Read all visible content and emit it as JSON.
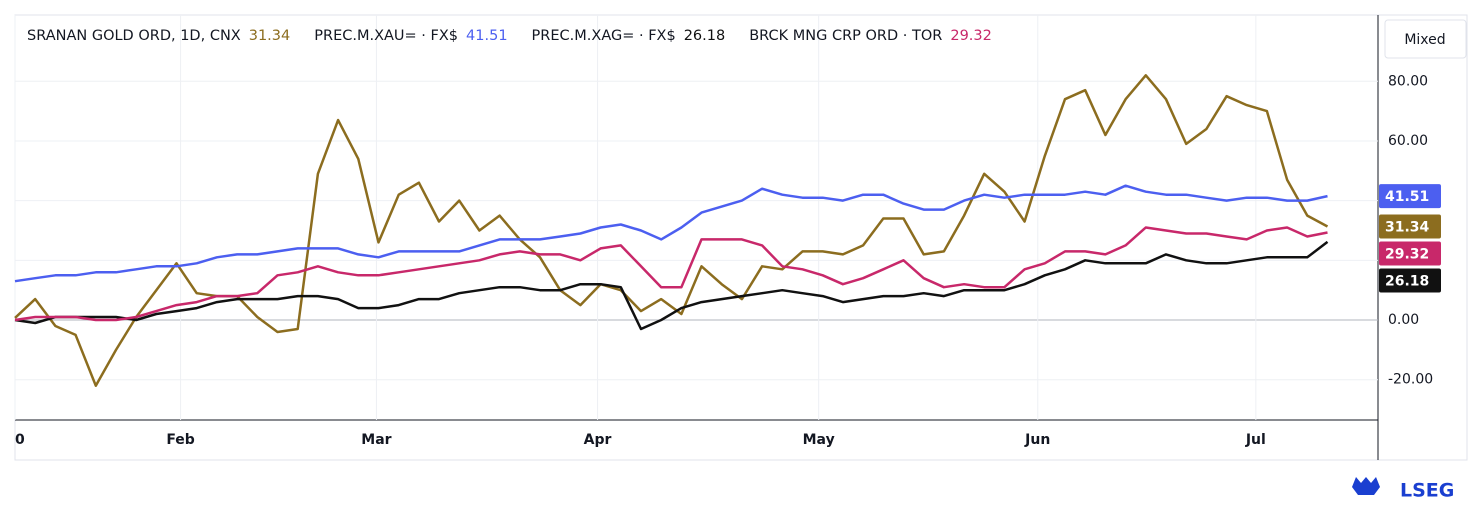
{
  "chart_data": {
    "type": "line",
    "legend_title": "SRANAN GOLD ORD, 1D, CNX",
    "button": "Mixed",
    "logo": "LSEG",
    "x": [
      0,
      2,
      4,
      6,
      8,
      10,
      12,
      14,
      16,
      18,
      20,
      22,
      24,
      26,
      28,
      30,
      32,
      34,
      36,
      38,
      40,
      42,
      44,
      46,
      48,
      50,
      52,
      54,
      56,
      58,
      60,
      62,
      64,
      66,
      68,
      70,
      72,
      74,
      76,
      78,
      80,
      82,
      84,
      86,
      88,
      90,
      92,
      94,
      96,
      98,
      100,
      102,
      104,
      106,
      108,
      110,
      112,
      114,
      116,
      118,
      120,
      122,
      124,
      126,
      128,
      130
    ],
    "xlim": [
      0,
      135
    ],
    "xticks": [
      0,
      {
        "value": 16.4,
        "label": "Feb"
      },
      {
        "value": 35.8,
        "label": "Mar"
      },
      {
        "value": 57.7,
        "label": "Apr"
      },
      {
        "value": 79.6,
        "label": "May"
      },
      {
        "value": 101.3,
        "label": "Jun"
      },
      {
        "value": 122.9,
        "label": "Jul"
      }
    ],
    "ylim": [
      -33.5,
      102.2
    ],
    "yticks": [
      {
        "value": -20,
        "label": "-20.00"
      },
      {
        "value": 0,
        "label": "0.00"
      },
      {
        "value": 20,
        "label": "20.00"
      },
      {
        "value": 40,
        "label": "40.00"
      },
      {
        "value": 60,
        "label": "60.00"
      },
      {
        "value": 80,
        "label": "80.00"
      }
    ],
    "grid": true,
    "series": [
      {
        "name": "",
        "color": "#8c6d1f",
        "values": [
          0.7,
          7,
          -2,
          -5,
          -22,
          -10,
          1,
          10,
          19,
          9,
          8,
          8,
          1,
          -4,
          -3,
          49,
          67,
          54,
          26,
          42,
          46,
          33,
          40,
          30,
          35,
          27,
          21,
          10,
          5,
          12,
          10,
          3,
          7,
          2,
          18,
          12,
          7,
          18,
          17,
          23,
          23,
          22,
          25,
          34,
          34,
          22,
          23,
          35,
          49,
          43,
          33,
          55,
          74,
          77,
          62,
          74,
          82,
          74,
          59,
          64,
          75,
          72,
          70,
          47,
          35,
          31.34
        ]
      },
      {
        "name": "PREC.M.XAU= · FX$",
        "color": "#4c5ff0",
        "values": [
          13,
          14,
          15,
          15,
          16,
          16,
          17,
          18,
          18,
          19,
          21,
          22,
          22,
          23,
          24,
          24,
          24,
          22,
          21,
          23,
          23,
          23,
          23,
          25,
          27,
          27,
          27,
          28,
          29,
          31,
          32,
          30,
          27,
          31,
          36,
          38,
          40,
          44,
          42,
          41,
          41,
          40,
          42,
          42,
          39,
          37,
          37,
          40,
          42,
          41,
          42,
          42,
          42,
          43,
          42,
          45,
          43,
          42,
          42,
          41,
          40,
          41,
          41,
          40,
          40,
          41.51
        ]
      },
      {
        "name": "PREC.M.XAG= · FX$",
        "color": "#111111",
        "values": [
          0,
          -1,
          1,
          1,
          1,
          1,
          0,
          2,
          3,
          4,
          6,
          7,
          7,
          7,
          8,
          8,
          7,
          4,
          4,
          5,
          7,
          7,
          9,
          10,
          11,
          11,
          10,
          10,
          12,
          12,
          11,
          -3,
          0,
          4,
          6,
          7,
          8,
          9,
          10,
          9,
          8,
          6,
          7,
          8,
          8,
          9,
          8,
          10,
          10,
          10,
          12,
          15,
          17,
          20,
          19,
          19,
          19,
          22,
          20,
          19,
          19,
          20,
          21,
          21,
          21,
          26.18
        ]
      },
      {
        "name": "BRCK MNG CRP ORD · TOR",
        "color": "#c8286a",
        "values": [
          0,
          1,
          1,
          1,
          0,
          0,
          1,
          3,
          5,
          6,
          8,
          8,
          9,
          15,
          16,
          18,
          16,
          15,
          15,
          16,
          17,
          18,
          19,
          20,
          22,
          23,
          22,
          22,
          20,
          24,
          25,
          18,
          11,
          11,
          27,
          27,
          27,
          25,
          18,
          17,
          15,
          12,
          14,
          17,
          20,
          14,
          11,
          12,
          11,
          11,
          17,
          19,
          23,
          23,
          22,
          25,
          31,
          30,
          29,
          29,
          28,
          27,
          30,
          31,
          28,
          29.32
        ]
      }
    ]
  }
}
